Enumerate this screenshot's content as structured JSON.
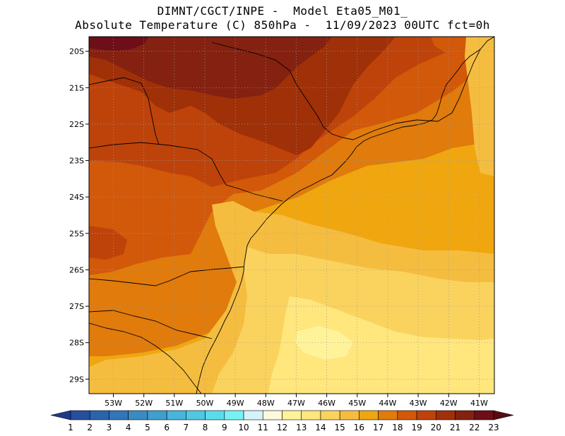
{
  "title": {
    "line1": "DIMNT/CGCT/INPE -  Model Eta05_M01_",
    "line2": "Absolute Temperature (C) 850hPa -  11/09/2023 00UTC fct=0h"
  },
  "map": {
    "extent": {
      "lon_min": -53.8,
      "lon_max": -40.5,
      "lat_min": -29.4,
      "lat_max": -19.6
    },
    "grid": true,
    "lat_ticks": [
      {
        "lat": -20,
        "label": "20S"
      },
      {
        "lat": -21,
        "label": "21S"
      },
      {
        "lat": -22,
        "label": "22S"
      },
      {
        "lat": -23,
        "label": "23S"
      },
      {
        "lat": -24,
        "label": "24S"
      },
      {
        "lat": -25,
        "label": "25S"
      },
      {
        "lat": -26,
        "label": "26S"
      },
      {
        "lat": -27,
        "label": "27S"
      },
      {
        "lat": -28,
        "label": "28S"
      },
      {
        "lat": -29,
        "label": "29S"
      }
    ],
    "lon_ticks": [
      {
        "lon": -53,
        "label": "53W"
      },
      {
        "lon": -52,
        "label": "52W"
      },
      {
        "lon": -51,
        "label": "51W"
      },
      {
        "lon": -50,
        "label": "50W"
      },
      {
        "lon": -49,
        "label": "49W"
      },
      {
        "lon": -48,
        "label": "48W"
      },
      {
        "lon": -47,
        "label": "47W"
      },
      {
        "lon": -46,
        "label": "46W"
      },
      {
        "lon": -45,
        "label": "45W"
      },
      {
        "lon": -44,
        "label": "44W"
      },
      {
        "lon": -43,
        "label": "43W"
      },
      {
        "lon": -42,
        "label": "42W"
      },
      {
        "lon": -41,
        "label": "41W"
      }
    ]
  },
  "colorbar": {
    "labels": [
      "1",
      "2",
      "3",
      "4",
      "5",
      "6",
      "7",
      "8",
      "9",
      "10",
      "11",
      "12",
      "13",
      "14",
      "15",
      "16",
      "17",
      "18",
      "19",
      "20",
      "21",
      "22",
      "23"
    ],
    "colors": [
      "#1f3a8a",
      "#25509f",
      "#2b64ae",
      "#3076b8",
      "#3a8bc4",
      "#3f9fcf",
      "#48b5da",
      "#50c8e3",
      "#5adcec",
      "#76f2f6",
      "#d4f3f8",
      "#fff8dc",
      "#fff39a",
      "#ffe67d",
      "#fad35e",
      "#f5bd40",
      "#f0a70f",
      "#e07b0c",
      "#d2580a",
      "#bd430b",
      "#9f3008",
      "#842110",
      "#6e0e18",
      "#5a0a12"
    ]
  }
}
